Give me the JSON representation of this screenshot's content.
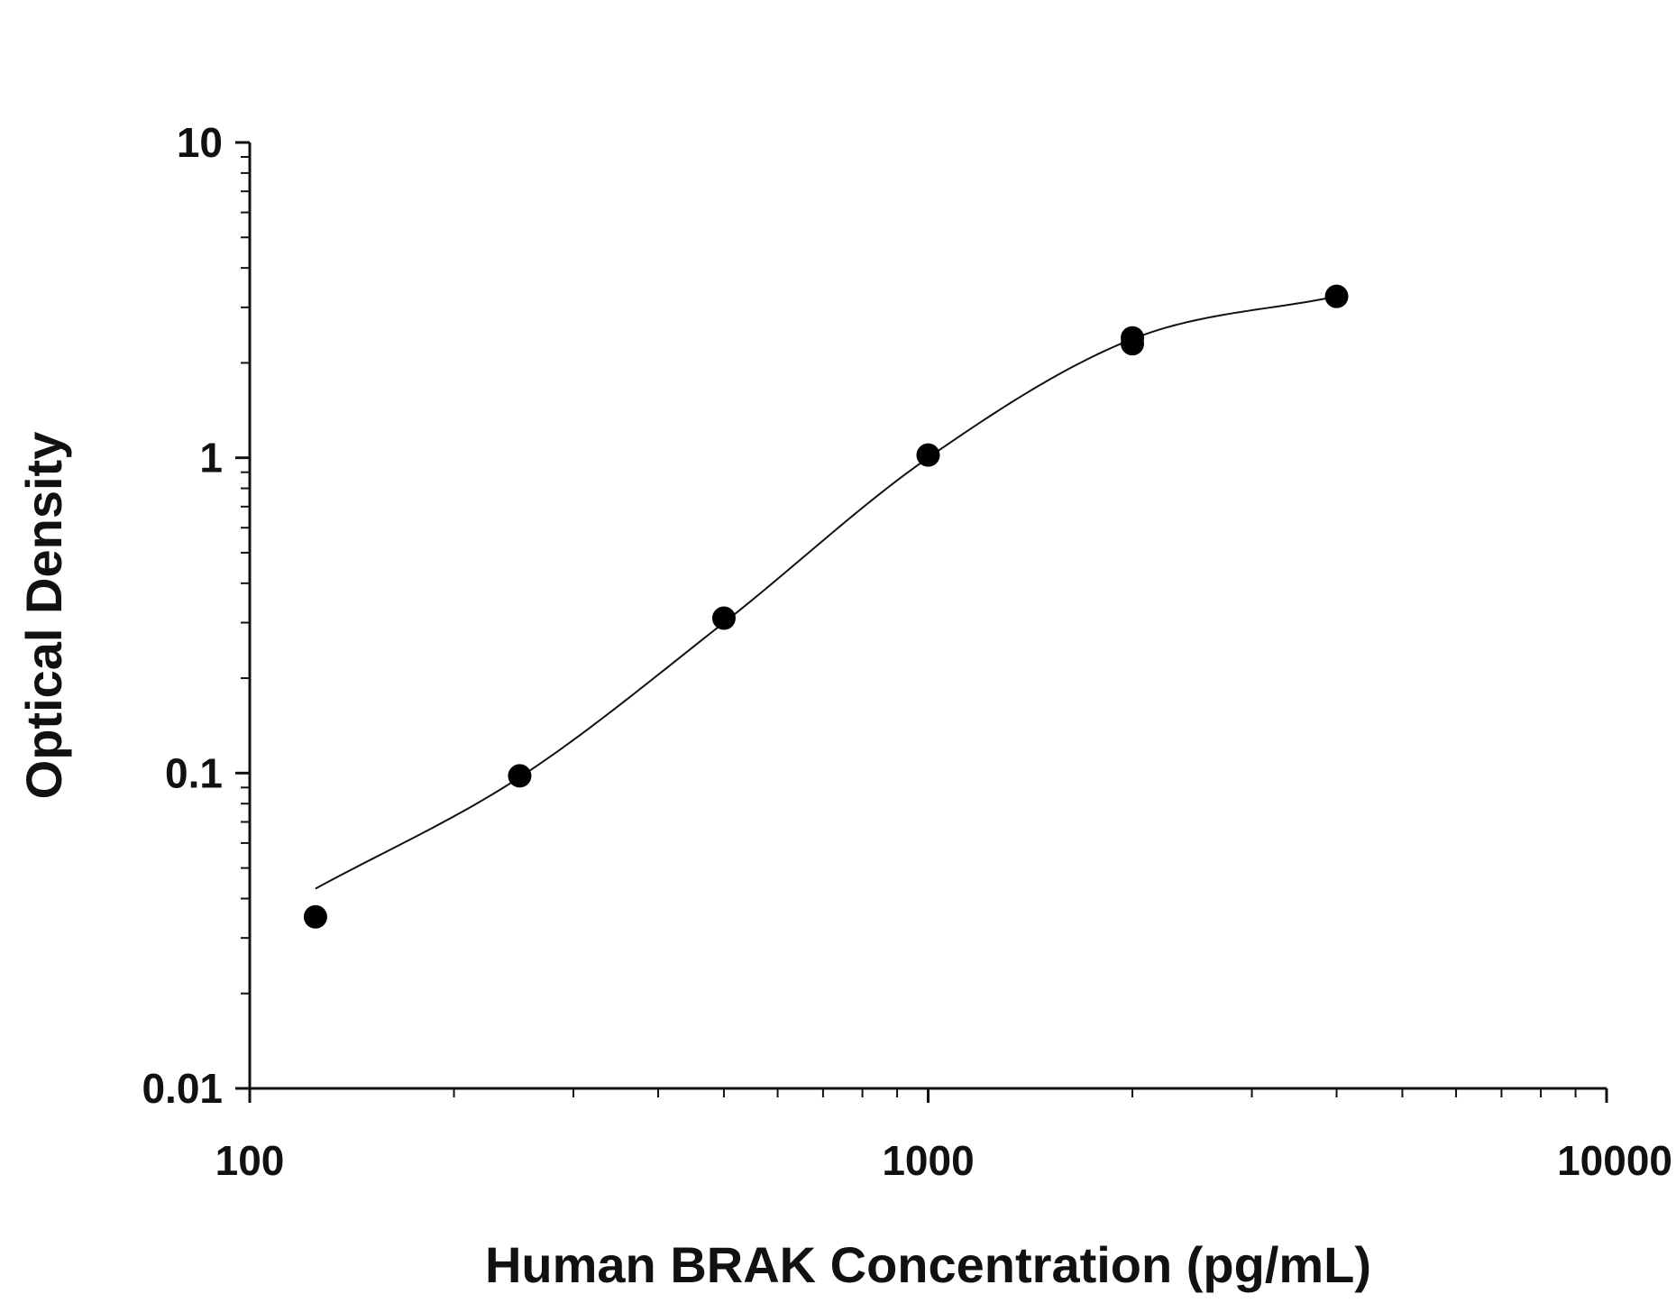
{
  "chart_data": {
    "type": "scatter",
    "title": "",
    "xlabel": "Human BRAK Concentration (pg/mL)",
    "ylabel": "Optical Density",
    "x_scale": "log",
    "y_scale": "log",
    "xlim": [
      100,
      10000
    ],
    "ylim": [
      0.01,
      10
    ],
    "x_ticks": [
      "100",
      "1000",
      "10000"
    ],
    "y_ticks": [
      "10",
      "1",
      "0.1",
      "0.01"
    ],
    "grid": false,
    "legend": "none",
    "series": [
      {
        "points": [
          {
            "x": 125,
            "y": 0.035
          },
          {
            "x": 250,
            "y": 0.098
          },
          {
            "x": 500,
            "y": 0.31
          },
          {
            "x": 1000,
            "y": 1.02
          },
          {
            "x": 2000,
            "y": 2.3
          },
          {
            "x": 2000,
            "y": 2.4
          },
          {
            "x": 4000,
            "y": 3.25
          }
        ]
      }
    ],
    "fit_curve": {
      "type": "sigmoid",
      "x_range": [
        125,
        4000
      ],
      "points": [
        {
          "x": 125,
          "y": 0.043
        },
        {
          "x": 250,
          "y": 0.097
        },
        {
          "x": 500,
          "y": 0.3
        },
        {
          "x": 1000,
          "y": 1.0
        },
        {
          "x": 2000,
          "y": 2.38
        },
        {
          "x": 4000,
          "y": 3.25
        }
      ]
    },
    "colors": {
      "points": "#000000",
      "curve": "#111111",
      "axes": "#111111"
    }
  }
}
